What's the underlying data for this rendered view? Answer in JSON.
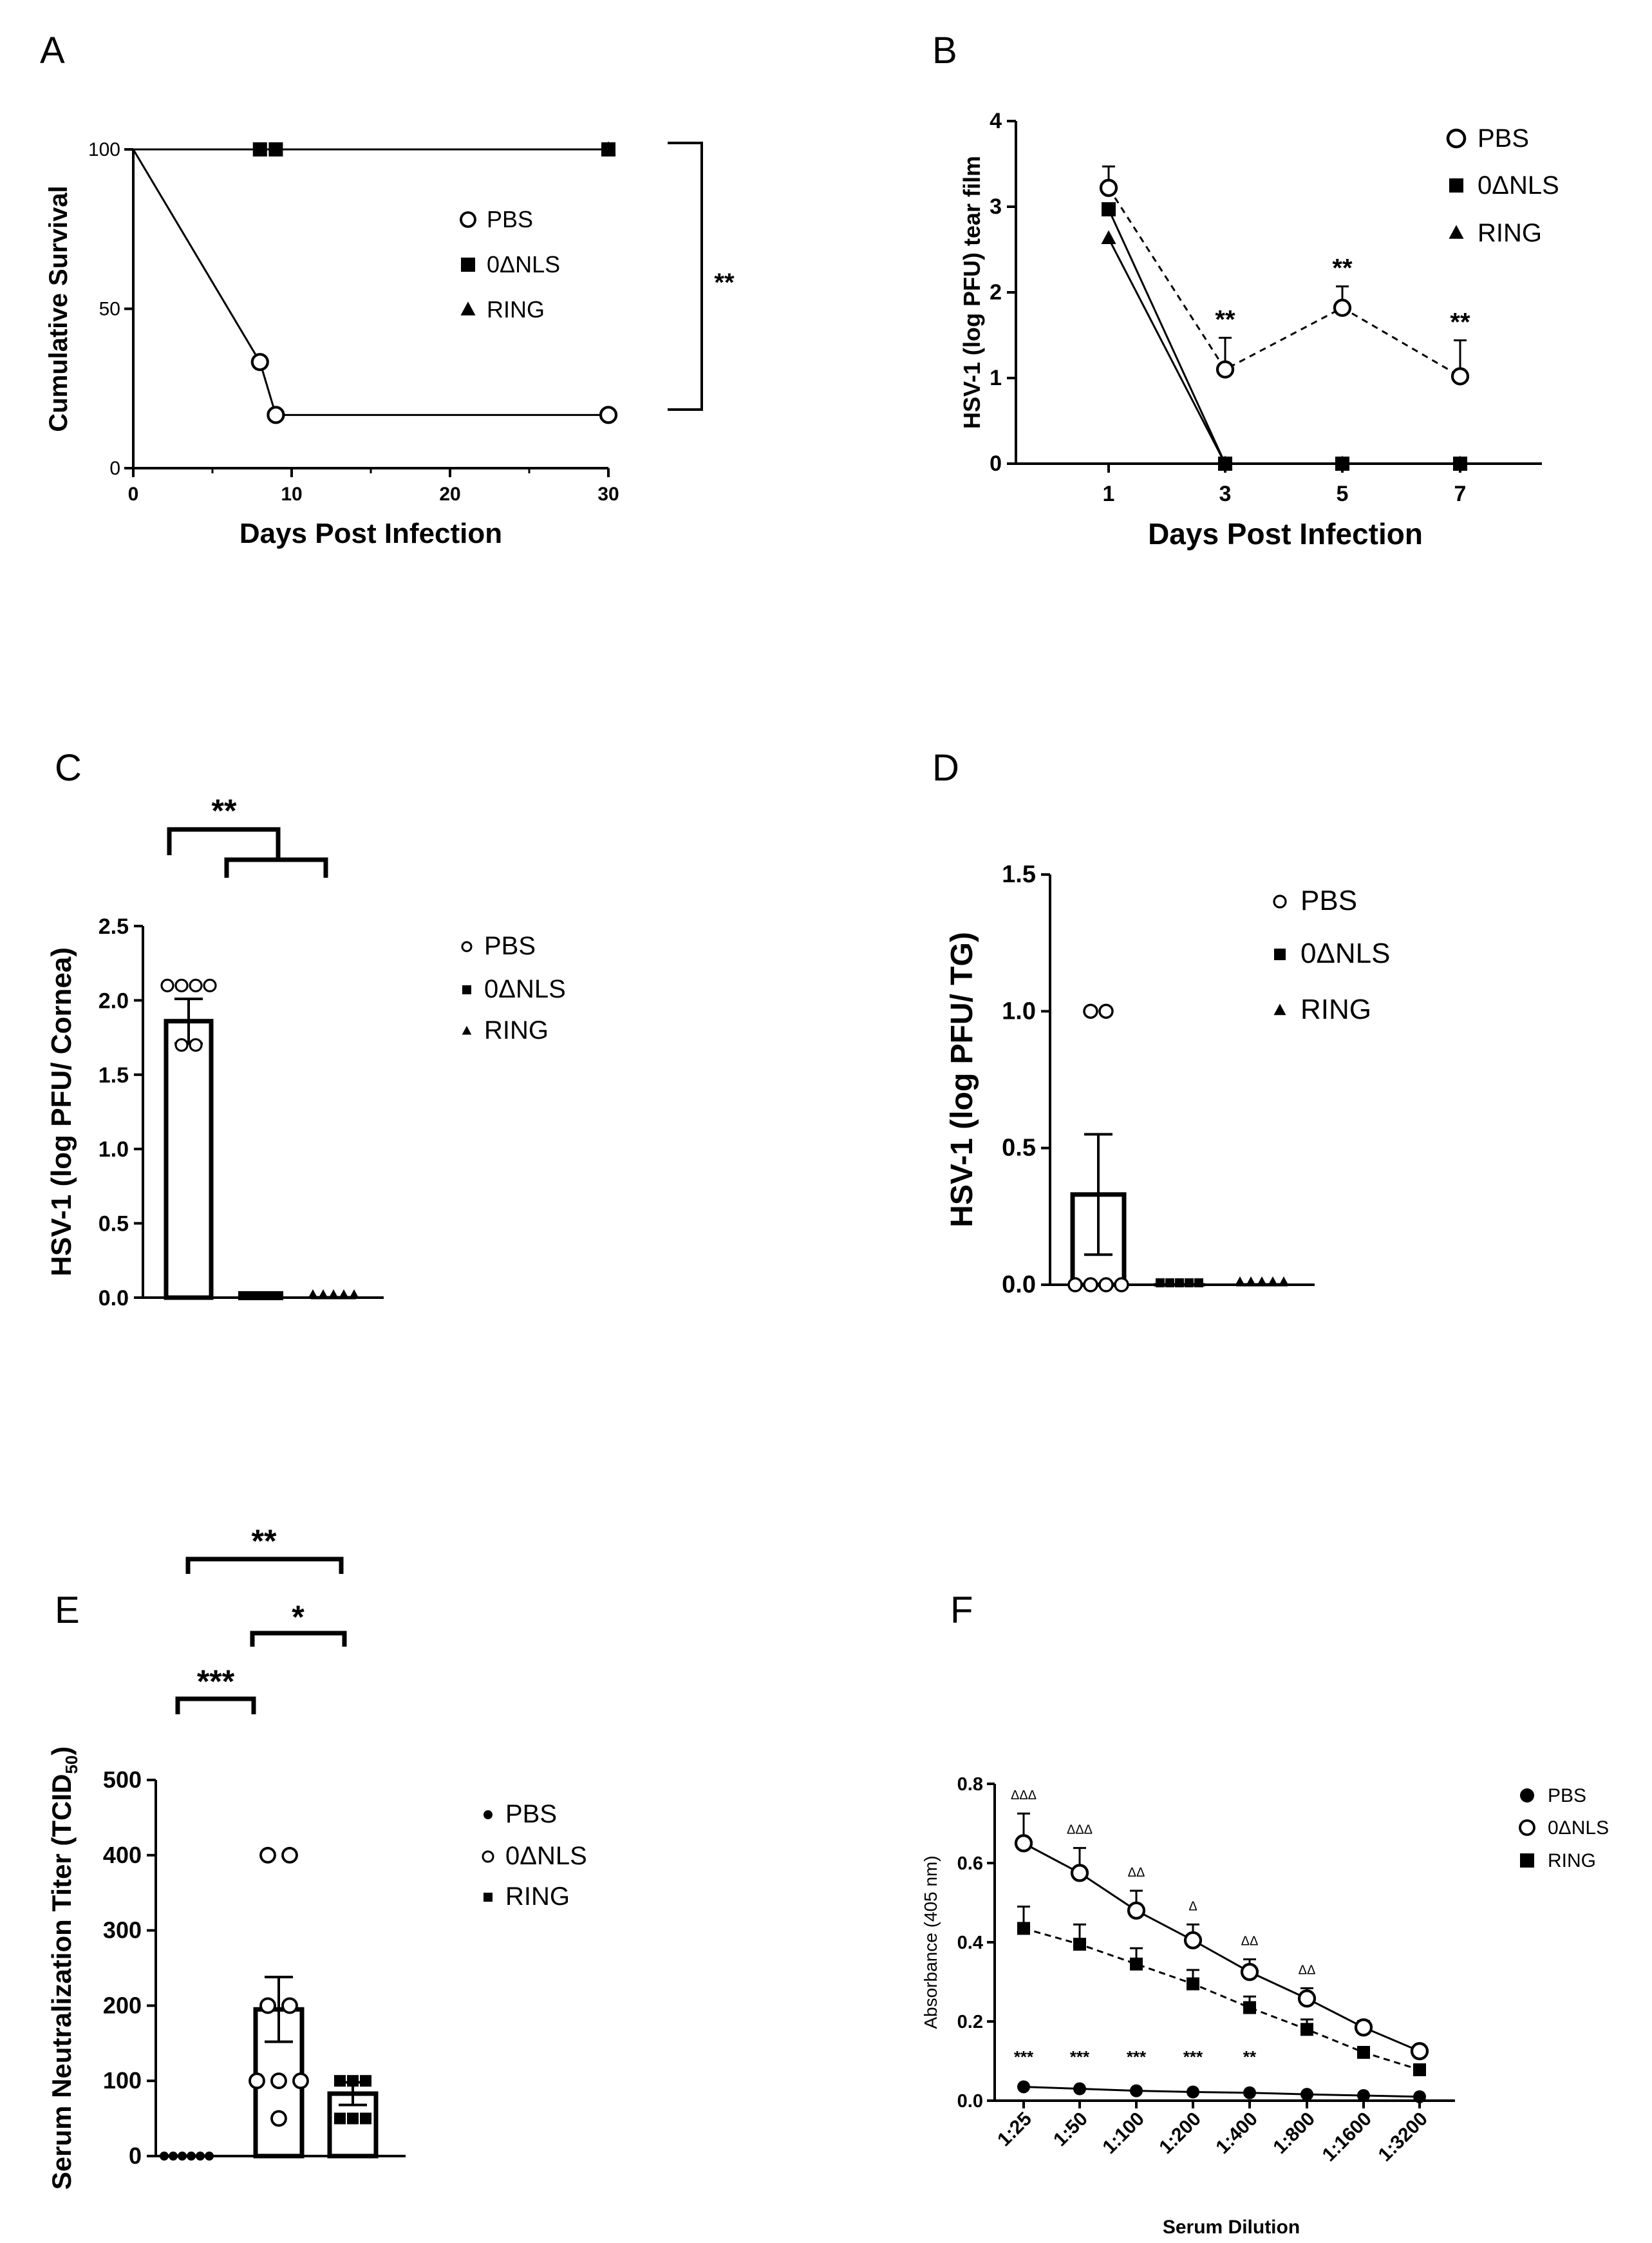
{
  "chart_data": [
    {
      "panel": "A",
      "type": "line",
      "title": "",
      "xlabel": "Days Post Infection",
      "ylabel": "Cumulative Survival",
      "xlim": [
        0,
        30
      ],
      "ylim": [
        0,
        100
      ],
      "xticks": [
        "0",
        "10",
        "20",
        "30"
      ],
      "yticks": [
        "0",
        "50",
        "100"
      ],
      "legend": [
        "PBS",
        "0ΔNLS",
        "RING"
      ],
      "series": [
        {
          "name": "PBS",
          "marker": "open-circle",
          "x": [
            0,
            8,
            9,
            30
          ],
          "y": [
            100,
            33.3,
            16.7,
            16.7
          ]
        },
        {
          "name": "0ΔNLS",
          "marker": "square",
          "x": [
            0,
            8,
            9,
            30
          ],
          "y": [
            100,
            100,
            100,
            100
          ]
        },
        {
          "name": "RING",
          "marker": "triangle",
          "x": [
            0,
            30
          ],
          "y": [
            100,
            100
          ]
        }
      ],
      "annotations": [
        "**"
      ]
    },
    {
      "panel": "B",
      "type": "line",
      "xlabel": "Days Post Infection",
      "ylabel": "HSV-1 (log PFU) tear film",
      "ylim": [
        0,
        4
      ],
      "categories": [
        "1",
        "3",
        "5",
        "7"
      ],
      "yticks": [
        "0",
        "1",
        "2",
        "3",
        "4"
      ],
      "legend": [
        "PBS",
        "0ΔNLS",
        "RING"
      ],
      "series": [
        {
          "name": "PBS",
          "marker": "open-circle",
          "values": [
            3.22,
            1.1,
            1.82,
            1.02
          ],
          "err": [
            0.25,
            0.37,
            0.25,
            0.42
          ]
        },
        {
          "name": "0ΔNLS",
          "marker": "square",
          "values": [
            2.97,
            0,
            0,
            0
          ]
        },
        {
          "name": "RING",
          "marker": "triangle",
          "values": [
            2.63,
            0,
            0,
            0
          ]
        }
      ],
      "annotations": [
        "**",
        "**",
        "**"
      ]
    },
    {
      "panel": "C",
      "type": "bar",
      "ylabel": "HSV-1 (log PFU/ Cornea)",
      "ylim": [
        0,
        2.5
      ],
      "yticks": [
        "0.0",
        "0.5",
        "1.0",
        "1.5",
        "2.0",
        "2.5"
      ],
      "categories": [
        "PBS",
        "0ΔNLS",
        "RING"
      ],
      "values": [
        1.86,
        0,
        0
      ],
      "err": [
        0.15,
        0,
        0
      ],
      "points": [
        [
          2.1,
          2.1,
          2.1,
          2.1,
          1.7,
          1.7
        ],
        [
          0,
          0,
          0,
          0,
          0
        ],
        [
          0,
          0,
          0,
          0,
          0
        ]
      ],
      "legend": [
        "PBS",
        "0ΔNLS",
        "RING"
      ],
      "annotations": [
        "**"
      ]
    },
    {
      "panel": "D",
      "type": "bar",
      "ylabel": "HSV-1 (log PFU/ TG)",
      "ylim": [
        0,
        1.5
      ],
      "yticks": [
        "0.0",
        "0.5",
        "1.0",
        "1.5"
      ],
      "categories": [
        "PBS",
        "0ΔNLS",
        "RING"
      ],
      "values": [
        0.33,
        0,
        0
      ],
      "err": [
        0.22,
        0,
        0
      ],
      "points": [
        [
          1.0,
          1.0,
          0,
          0,
          0,
          0
        ],
        [
          0,
          0,
          0,
          0,
          0
        ],
        [
          0,
          0,
          0,
          0,
          0
        ]
      ],
      "legend": [
        "PBS",
        "0ΔNLS",
        "RING"
      ]
    },
    {
      "panel": "E",
      "type": "bar",
      "ylabel": "Serum Neutralization Titer (TCID",
      "ylabel_sub": "50",
      "ylabel_end": ")",
      "ylim": [
        0,
        500
      ],
      "yticks": [
        "0",
        "100",
        "200",
        "300",
        "400",
        "500"
      ],
      "categories": [
        "PBS",
        "0ΔNLS",
        "RING"
      ],
      "values": [
        0,
        195,
        83
      ],
      "err": [
        0,
        43,
        15
      ],
      "points": [
        [
          0,
          0,
          0,
          0,
          0,
          0
        ],
        [
          400,
          400,
          200,
          200,
          100,
          100,
          100,
          50
        ],
        [
          100,
          100,
          100,
          50,
          50,
          50
        ]
      ],
      "legend": [
        "PBS",
        "0ΔNLS",
        "RING"
      ],
      "annotations": [
        "**",
        "*",
        "***"
      ]
    },
    {
      "panel": "F",
      "type": "line",
      "xlabel": "Serum Dilution",
      "ylabel": "Absorbance (405 nm)",
      "ylim": [
        0,
        0.8
      ],
      "yticks": [
        "0.0",
        "0.2",
        "0.4",
        "0.6",
        "0.8"
      ],
      "categories": [
        "1:25",
        "1:50",
        "1:100",
        "1:200",
        "1:400",
        "1:800",
        "1:1600",
        "1:3200"
      ],
      "legend": [
        "PBS",
        "0ΔNLS",
        "RING"
      ],
      "series": [
        {
          "name": "PBS",
          "marker": "filled-circle",
          "values": [
            0.035,
            0.03,
            0.025,
            0.022,
            0.02,
            0.016,
            0.013,
            0.01
          ]
        },
        {
          "name": "0ΔNLS",
          "marker": "open-circle",
          "values": [
            0.65,
            0.575,
            0.48,
            0.405,
            0.325,
            0.258,
            0.185,
            0.125
          ],
          "err": [
            0.075,
            0.063,
            0.05,
            0.04,
            0.032,
            0.026,
            0.016,
            0.01
          ]
        },
        {
          "name": "RING",
          "marker": "square",
          "values": [
            0.435,
            0.395,
            0.345,
            0.295,
            0.235,
            0.18,
            0.122,
            0.078
          ],
          "err": [
            0.055,
            0.05,
            0.04,
            0.035,
            0.028,
            0.025,
            0.012,
            0.008
          ]
        }
      ],
      "delta_labels": [
        "ΔΔΔ",
        "ΔΔΔ",
        "ΔΔ",
        "Δ",
        "ΔΔ",
        "ΔΔ",
        "",
        ""
      ],
      "star_labels": [
        "***",
        "***",
        "***",
        "***",
        "**",
        "",
        "",
        ""
      ]
    }
  ],
  "panels": {
    "A": {
      "letter": "A"
    },
    "B": {
      "letter": "B"
    },
    "C": {
      "letter": "C"
    },
    "D": {
      "letter": "D"
    },
    "E": {
      "letter": "E"
    },
    "F": {
      "letter": "F"
    }
  }
}
